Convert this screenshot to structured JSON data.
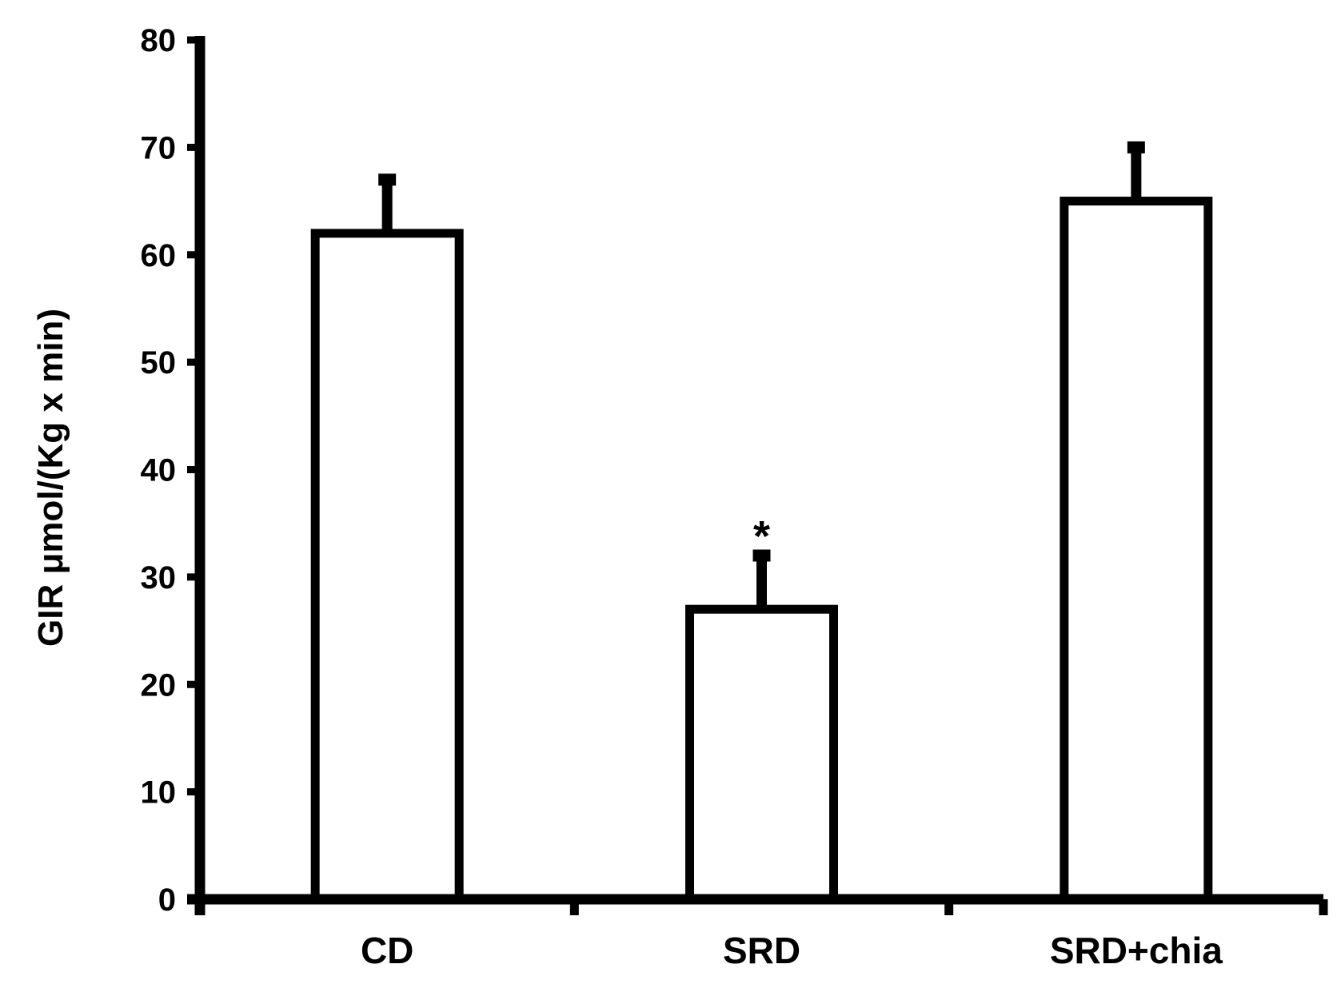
{
  "chart_data": {
    "type": "bar",
    "title": "",
    "xlabel": "",
    "ylabel": "GIR μmol/(Kg x min)",
    "categories": [
      "CD",
      "SRD",
      "SRD+chia"
    ],
    "values": [
      62,
      27,
      65
    ],
    "error_upper": [
      5,
      5,
      5
    ],
    "annotations": [
      "",
      "*",
      ""
    ],
    "ylim": [
      0,
      80
    ],
    "yticks": [
      0,
      10,
      20,
      30,
      40,
      50,
      60,
      70,
      80
    ],
    "grid": false,
    "bar_fill": "#ffffff",
    "bar_stroke": "#000000"
  }
}
